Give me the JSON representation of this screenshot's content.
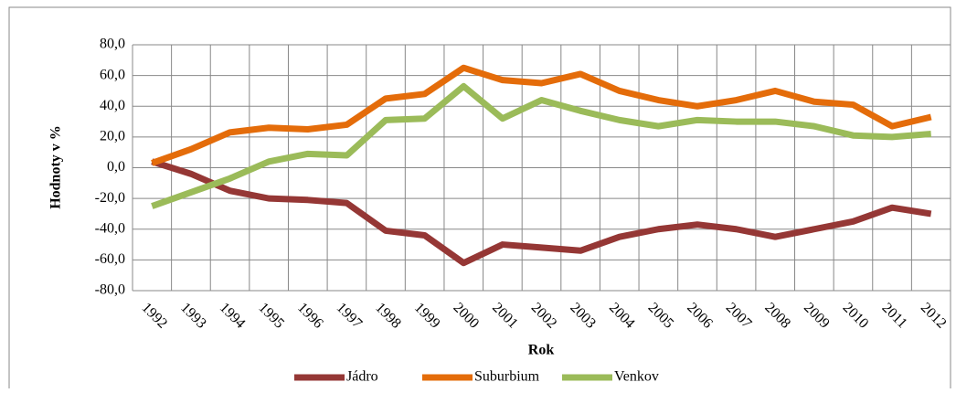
{
  "chart_data": {
    "type": "line",
    "y_label": "Hodnoty v %",
    "x_label": "Rok",
    "categories": [
      "1992",
      "1993",
      "1994",
      "1995",
      "1996",
      "1997",
      "1998",
      "1999",
      "2000",
      "2001",
      "2002",
      "2003",
      "2004",
      "2005",
      "2006",
      "2007",
      "2008",
      "2009",
      "2010",
      "2011",
      "2012"
    ],
    "series": [
      {
        "name": "Jádro",
        "color": "#953735",
        "values": [
          4,
          -4,
          -15,
          -20,
          -21,
          -23,
          -41,
          -44,
          -62,
          -50,
          -52,
          -54,
          -45,
          -40,
          -37,
          -40,
          -45,
          -40,
          -35,
          -26,
          -30
        ]
      },
      {
        "name": "Suburbium",
        "color": "#e46c0a",
        "values": [
          3,
          12,
          23,
          26,
          25,
          28,
          45,
          48,
          65,
          57,
          55,
          61,
          50,
          44,
          40,
          44,
          50,
          43,
          41,
          27,
          33
        ]
      },
      {
        "name": "Venkov",
        "color": "#9bbb59",
        "values": [
          -25,
          -16,
          -7,
          4,
          9,
          8,
          31,
          32,
          53,
          32,
          44,
          37,
          31,
          27,
          31,
          30,
          30,
          27,
          21,
          20,
          22
        ]
      }
    ],
    "ylim": [
      -80,
      80
    ],
    "yticks": [
      {
        "value": -80,
        "label": "-80,0"
      },
      {
        "value": -60,
        "label": "-60,0"
      },
      {
        "value": -40,
        "label": "-40,0"
      },
      {
        "value": -20,
        "label": "-20,0"
      },
      {
        "value": 0,
        "label": "0,0"
      },
      {
        "value": 20,
        "label": "20,0"
      },
      {
        "value": 40,
        "label": "40,0"
      },
      {
        "value": 60,
        "label": "60,0"
      },
      {
        "value": 80,
        "label": "80,0"
      }
    ],
    "grid": true,
    "legend": "bottom"
  }
}
